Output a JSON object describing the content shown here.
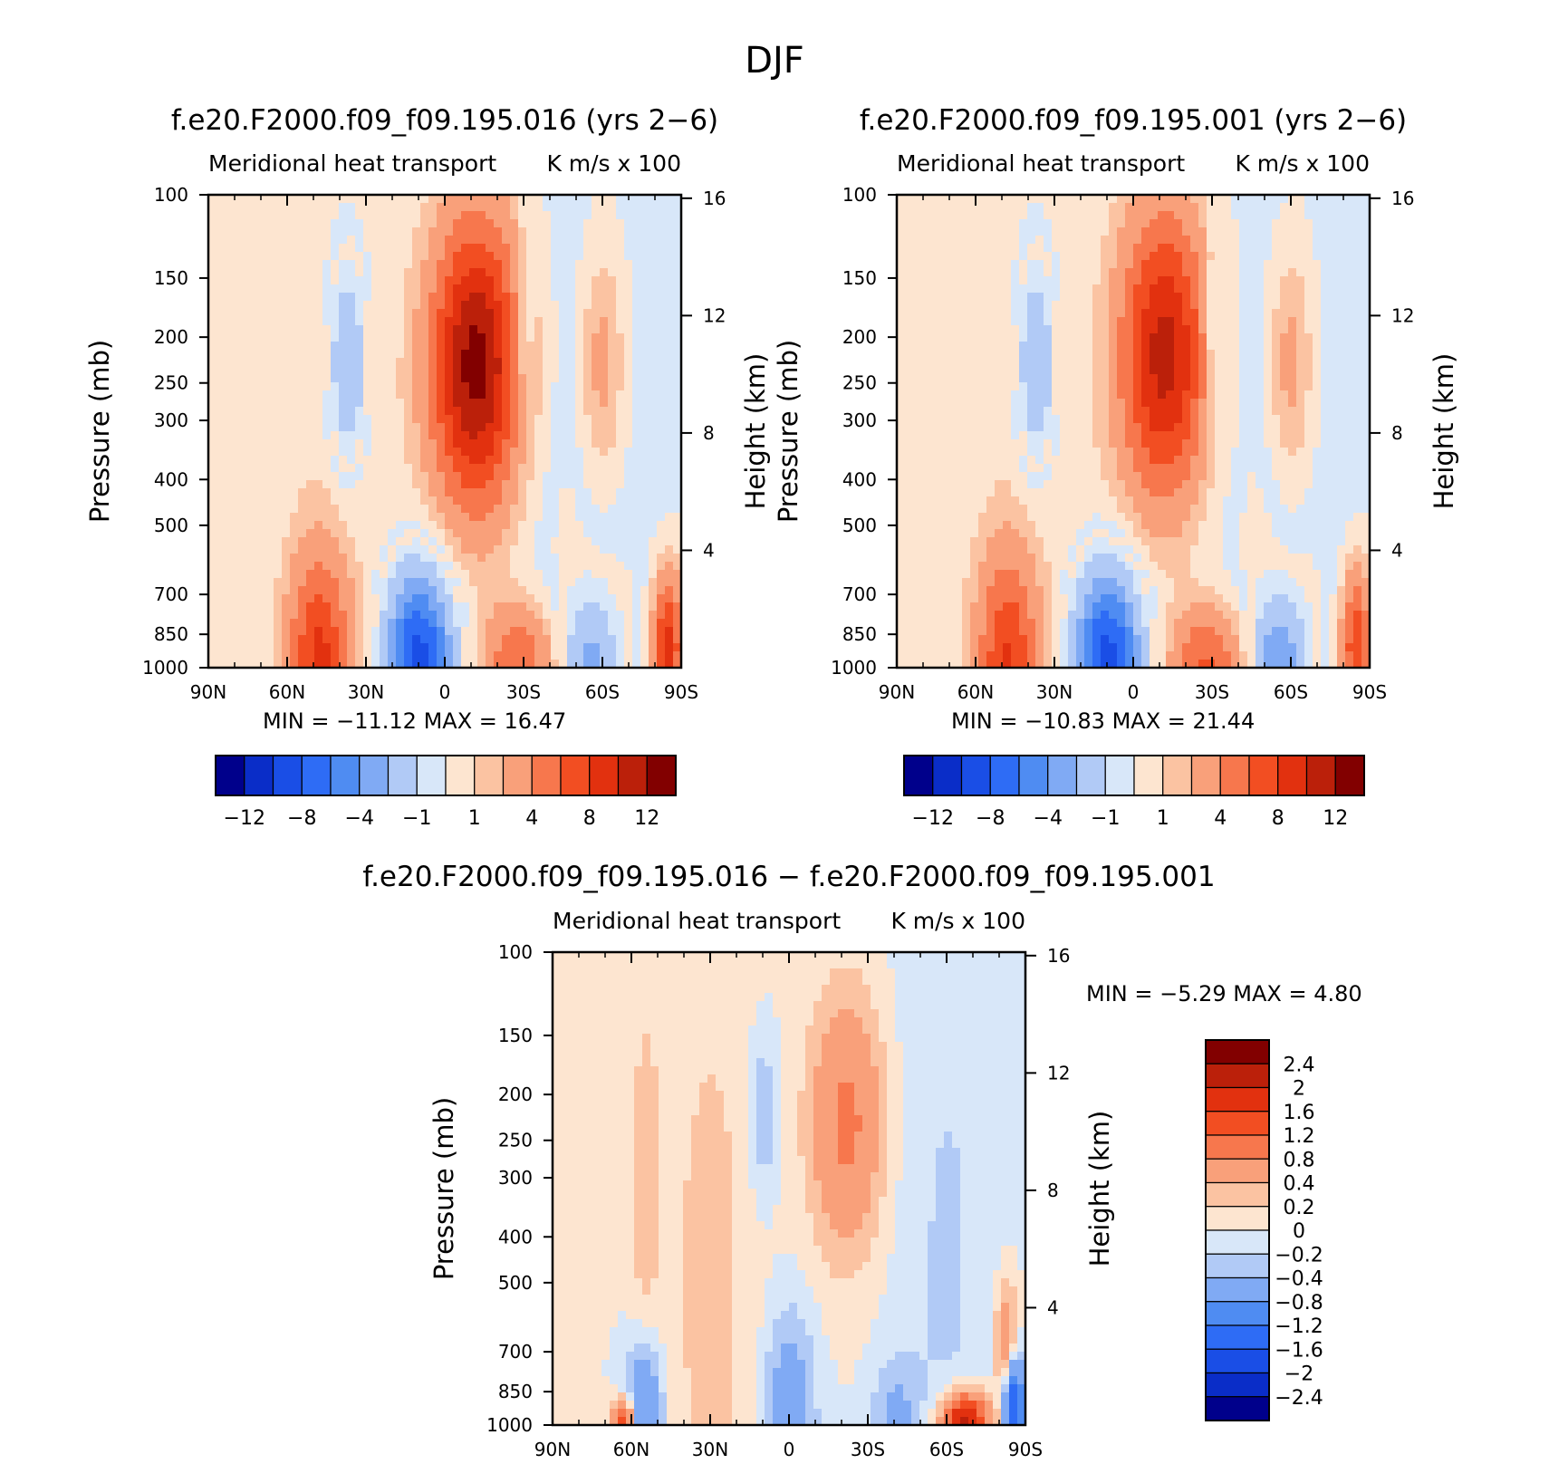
{
  "page_title": "DJF",
  "chart_data": [
    {
      "type": "heatmap",
      "title": "f.e20.F2000.f09_f09.195.016 (yrs 2−6)",
      "subtitle_left": "Meridional heat transport",
      "subtitle_right": "K m/s x 100",
      "ylabel": "Pressure (mb)",
      "ylabel_right": "Height (km)",
      "x_ticks": [
        "90N",
        "60N",
        "30N",
        "0",
        "30S",
        "60S",
        "90S"
      ],
      "y_ticks": [
        100,
        150,
        200,
        250,
        300,
        400,
        500,
        700,
        850,
        1000
      ],
      "y_range": [
        100,
        1000
      ],
      "y_scale": "log",
      "right_ticks": [
        16,
        12,
        8,
        4
      ],
      "stats": {
        "min_label": "MIN =",
        "min": "−11.12",
        "max_label": "MAX =",
        "max": "16.47"
      },
      "colorbar": {
        "levels": [
          "−12",
          "−8",
          "−4",
          "−1",
          "1",
          "4",
          "8",
          "12"
        ],
        "colors": [
          "#00008b",
          "#0a2dc8",
          "#1a4ee6",
          "#2e6cf5",
          "#4f8cf2",
          "#80aaf4",
          "#b1caf6",
          "#d8e7f9",
          "#fde5d0",
          "#fbc3a2",
          "#f9a07a",
          "#f7774d",
          "#f24e22",
          "#e2310f",
          "#bb200a",
          "#820000"
        ]
      },
      "features": [
        {
          "sign": "pos",
          "lat": -12,
          "p": 230,
          "amp": 13,
          "slat": 12,
          "slp": 0.5
        },
        {
          "sign": "neg",
          "lat": 37,
          "p": 230,
          "amp": 4.5,
          "slat": 5,
          "slp": 0.35
        },
        {
          "sign": "neg",
          "lat": -30,
          "p": 200,
          "amp": 2.5,
          "slat": 2.5,
          "slp": 0.3
        },
        {
          "sign": "pos",
          "lat": -60,
          "p": 230,
          "amp": 3,
          "slat": 6,
          "slp": 0.4
        },
        {
          "sign": "neg",
          "lat": 10,
          "p": 960,
          "amp": 11,
          "slat": 9,
          "slp": 0.3
        },
        {
          "sign": "pos",
          "lat": 48,
          "p": 960,
          "amp": 8,
          "slat": 8,
          "slp": 0.35
        },
        {
          "sign": "pos",
          "lat": -28,
          "p": 980,
          "amp": 6,
          "slat": 10,
          "slp": 0.2
        },
        {
          "sign": "neg",
          "lat": -55,
          "p": 960,
          "amp": 4,
          "slat": 7,
          "slp": 0.2
        },
        {
          "sign": "pos",
          "lat": -85,
          "p": 900,
          "amp": 9,
          "slat": 4,
          "slp": 0.25
        },
        {
          "sign": "pos",
          "lat": 40,
          "p": 500,
          "amp": 0.8,
          "slat": 20,
          "slp": 1.2
        },
        {
          "sign": "neg",
          "lat": -50,
          "p": 450,
          "amp": 0.7,
          "slat": 25,
          "slp": 1.3
        }
      ]
    },
    {
      "type": "heatmap",
      "title": "f.e20.F2000.f09_f09.195.001 (yrs 2−6)",
      "subtitle_left": "Meridional heat transport",
      "subtitle_right": "K m/s x 100",
      "ylabel": "Pressure (mb)",
      "ylabel_right": "Height (km)",
      "x_ticks": [
        "90N",
        "60N",
        "30N",
        "0",
        "30S",
        "60S",
        "90S"
      ],
      "y_ticks": [
        100,
        150,
        200,
        250,
        300,
        400,
        500,
        700,
        850,
        1000
      ],
      "y_range": [
        100,
        1000
      ],
      "y_scale": "log",
      "right_ticks": [
        16,
        12,
        8,
        4
      ],
      "stats": {
        "min_label": "MIN =",
        "min": "−10.83",
        "max_label": "MAX =",
        "max": "21.44"
      },
      "colorbar": {
        "levels": [
          "−12",
          "−8",
          "−4",
          "−1",
          "1",
          "4",
          "8",
          "12"
        ],
        "colors": [
          "#00008b",
          "#0a2dc8",
          "#1a4ee6",
          "#2e6cf5",
          "#4f8cf2",
          "#80aaf4",
          "#b1caf6",
          "#d8e7f9",
          "#fde5d0",
          "#fbc3a2",
          "#f9a07a",
          "#f7774d",
          "#f24e22",
          "#e2310f",
          "#bb200a",
          "#820000"
        ]
      },
      "features": [
        {
          "sign": "pos",
          "lat": -12,
          "p": 220,
          "amp": 11,
          "slat": 12,
          "slp": 0.5
        },
        {
          "sign": "neg",
          "lat": 37,
          "p": 230,
          "amp": 4.5,
          "slat": 5,
          "slp": 0.35
        },
        {
          "sign": "neg",
          "lat": -30,
          "p": 200,
          "amp": 2.5,
          "slat": 2.5,
          "slp": 0.3
        },
        {
          "sign": "pos",
          "lat": -60,
          "p": 230,
          "amp": 3,
          "slat": 6,
          "slp": 0.4
        },
        {
          "sign": "neg",
          "lat": 10,
          "p": 960,
          "amp": 11,
          "slat": 9,
          "slp": 0.3
        },
        {
          "sign": "pos",
          "lat": 48,
          "p": 960,
          "amp": 7.5,
          "slat": 8,
          "slp": 0.35
        },
        {
          "sign": "pos",
          "lat": -28,
          "p": 980,
          "amp": 6.5,
          "slat": 10,
          "slp": 0.2
        },
        {
          "sign": "neg",
          "lat": -55,
          "p": 960,
          "amp": 5,
          "slat": 7,
          "slp": 0.2
        },
        {
          "sign": "pos",
          "lat": -85,
          "p": 900,
          "amp": 8,
          "slat": 4,
          "slp": 0.25
        },
        {
          "sign": "pos",
          "lat": 40,
          "p": 500,
          "amp": 0.8,
          "slat": 20,
          "slp": 1.2
        },
        {
          "sign": "neg",
          "lat": -50,
          "p": 450,
          "amp": 0.7,
          "slat": 25,
          "slp": 1.3
        }
      ]
    },
    {
      "type": "heatmap",
      "title": "f.e20.F2000.f09_f09.195.016 − f.e20.F2000.f09_f09.195.001",
      "subtitle_left": "Meridional heat transport",
      "subtitle_right": "K m/s x 100",
      "ylabel": "Pressure (mb)",
      "ylabel_right": "Height (km)",
      "x_ticks": [
        "90N",
        "60N",
        "30N",
        "0",
        "30S",
        "60S",
        "90S"
      ],
      "y_ticks": [
        100,
        150,
        200,
        250,
        300,
        400,
        500,
        700,
        850,
        1000
      ],
      "y_range": [
        100,
        1000
      ],
      "y_scale": "log",
      "right_ticks": [
        16,
        12,
        8,
        4
      ],
      "stats": {
        "min_label": "MIN =",
        "min": "−5.29",
        "max_label": "MAX =",
        "max": "4.80"
      },
      "colorbar": {
        "levels": [
          "2.4",
          "2",
          "1.6",
          "1.2",
          "0.8",
          "0.4",
          "0.2",
          "0",
          "−0.2",
          "−0.4",
          "−0.8",
          "−1.2",
          "−1.6",
          "−2",
          "−2.4"
        ],
        "colors": [
          "#820000",
          "#bb200a",
          "#e2310f",
          "#f24e22",
          "#f7774d",
          "#f9a07a",
          "#fbc3a2",
          "#fde5d0",
          "#d8e7f9",
          "#b1caf6",
          "#80aaf4",
          "#4f8cf2",
          "#2e6cf5",
          "#1a4ee6",
          "#0a2dc8",
          "#00008b"
        ]
      },
      "features": [
        {
          "sign": "pos",
          "lat": -22,
          "p": 230,
          "amp": 0.9,
          "slat": 10,
          "slp": 0.45
        },
        {
          "sign": "neg",
          "lat": 10,
          "p": 220,
          "amp": 0.45,
          "slat": 4,
          "slp": 0.3
        },
        {
          "sign": "pos",
          "lat": 55,
          "p": 300,
          "amp": 0.3,
          "slat": 4,
          "slp": 0.6
        },
        {
          "sign": "neg",
          "lat": 0,
          "p": 930,
          "amp": 0.7,
          "slat": 7,
          "slp": 0.35
        },
        {
          "sign": "neg",
          "lat": -40,
          "p": 980,
          "amp": 0.45,
          "slat": 6,
          "slp": 0.2
        },
        {
          "sign": "pos",
          "lat": -67,
          "p": 990,
          "amp": 2.4,
          "slat": 6,
          "slp": 0.1
        },
        {
          "sign": "neg",
          "lat": -85,
          "p": 900,
          "amp": 2.2,
          "slat": 3,
          "slp": 0.18
        },
        {
          "sign": "pos",
          "lat": -83,
          "p": 750,
          "amp": 1.2,
          "slat": 3,
          "slp": 0.25
        },
        {
          "sign": "neg",
          "lat": 55,
          "p": 930,
          "amp": 0.9,
          "slat": 5,
          "slp": 0.25
        },
        {
          "sign": "pos",
          "lat": 63,
          "p": 995,
          "amp": 1.6,
          "slat": 3,
          "slp": 0.08
        },
        {
          "sign": "pos",
          "lat": 30,
          "p": 500,
          "amp": 0.25,
          "slat": 15,
          "slp": 1.5
        },
        {
          "sign": "neg",
          "lat": -60,
          "p": 450,
          "amp": 0.22,
          "slat": 15,
          "slp": 1.5
        }
      ]
    }
  ]
}
